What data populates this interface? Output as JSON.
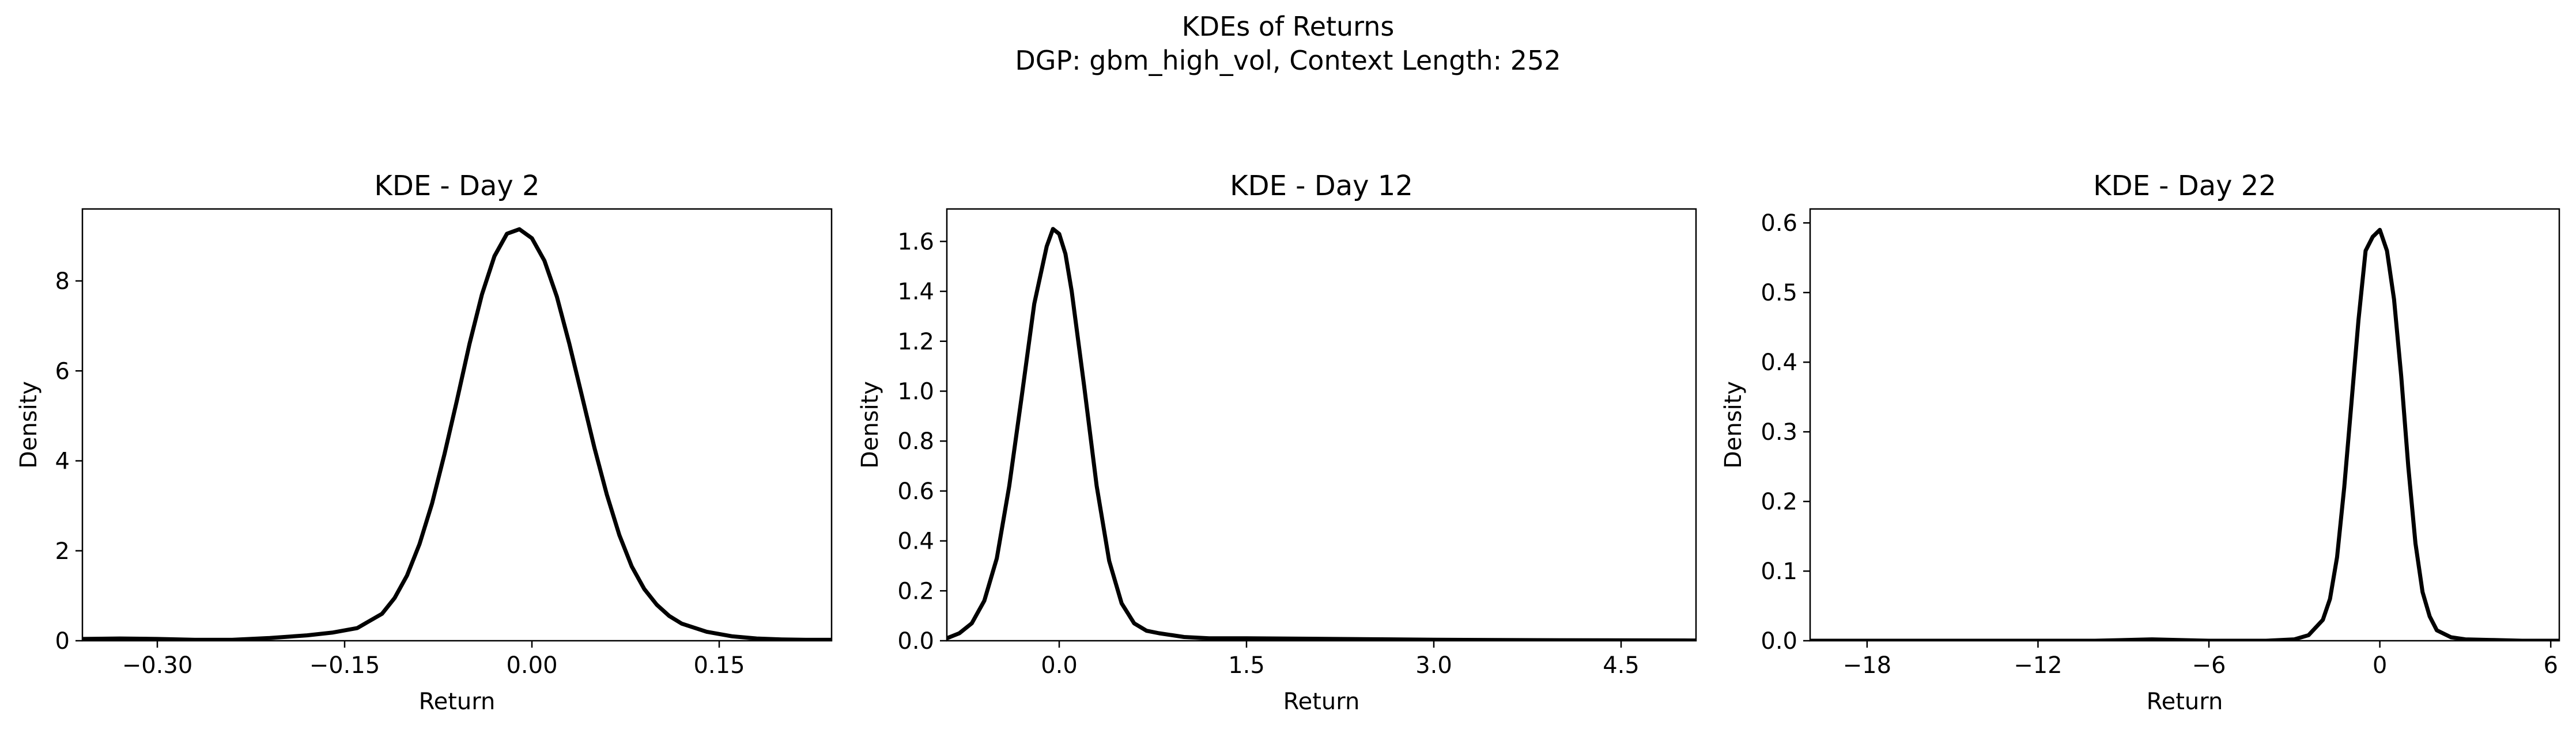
{
  "figure": {
    "title": "KDEs of Returns",
    "subtitle": "DGP: gbm_high_vol, Context Length: 252"
  },
  "chart_data": [
    {
      "type": "line",
      "title": "KDE - Day 2",
      "xlabel": "Return",
      "ylabel": "Density",
      "xlim": [
        -0.36,
        0.24
      ],
      "ylim": [
        0,
        9.6
      ],
      "xticks": [
        -0.3,
        -0.15,
        0.0,
        0.15
      ],
      "xtick_labels": [
        "−0.30",
        "−0.15",
        "0.00",
        "0.15"
      ],
      "yticks": [
        0,
        2,
        4,
        6,
        8
      ],
      "ytick_labels": [
        "0",
        "2",
        "4",
        "6",
        "8"
      ],
      "grid": false,
      "series": [
        {
          "color": "#000000",
          "x": [
            -0.36,
            -0.33,
            -0.3,
            -0.27,
            -0.24,
            -0.21,
            -0.18,
            -0.16,
            -0.14,
            -0.12,
            -0.11,
            -0.1,
            -0.09,
            -0.08,
            -0.07,
            -0.06,
            -0.05,
            -0.04,
            -0.03,
            -0.02,
            -0.01,
            0.0,
            0.01,
            0.02,
            0.03,
            0.04,
            0.05,
            0.06,
            0.07,
            0.08,
            0.09,
            0.1,
            0.11,
            0.12,
            0.14,
            0.16,
            0.18,
            0.2,
            0.22,
            0.24
          ],
          "y": [
            0.04,
            0.05,
            0.04,
            0.02,
            0.02,
            0.06,
            0.12,
            0.18,
            0.28,
            0.6,
            0.95,
            1.45,
            2.15,
            3.05,
            4.15,
            5.35,
            6.6,
            7.7,
            8.55,
            9.05,
            9.15,
            8.95,
            8.45,
            7.65,
            6.6,
            5.45,
            4.3,
            3.25,
            2.35,
            1.65,
            1.15,
            0.8,
            0.55,
            0.38,
            0.2,
            0.1,
            0.05,
            0.03,
            0.02,
            0.02
          ]
        }
      ]
    },
    {
      "type": "line",
      "title": "KDE - Day 12",
      "xlabel": "Return",
      "ylabel": "Density",
      "xlim": [
        -0.9,
        5.1
      ],
      "ylim": [
        0,
        1.73
      ],
      "xticks": [
        0.0,
        1.5,
        3.0,
        4.5
      ],
      "xtick_labels": [
        "0.0",
        "1.5",
        "3.0",
        "4.5"
      ],
      "yticks": [
        0.0,
        0.2,
        0.4,
        0.6,
        0.8,
        1.0,
        1.2,
        1.4,
        1.6
      ],
      "ytick_labels": [
        "0.0",
        "0.2",
        "0.4",
        "0.6",
        "0.8",
        "1.0",
        "1.2",
        "1.4",
        "1.6"
      ],
      "grid": false,
      "series": [
        {
          "color": "#000000",
          "x": [
            -0.9,
            -0.8,
            -0.7,
            -0.6,
            -0.5,
            -0.4,
            -0.3,
            -0.2,
            -0.1,
            -0.05,
            0.0,
            0.05,
            0.1,
            0.2,
            0.3,
            0.4,
            0.5,
            0.6,
            0.7,
            0.8,
            1.0,
            1.2,
            1.5,
            2.0,
            2.5,
            3.0,
            4.0,
            5.1
          ],
          "y": [
            0.01,
            0.03,
            0.07,
            0.16,
            0.33,
            0.62,
            0.98,
            1.35,
            1.58,
            1.65,
            1.63,
            1.55,
            1.4,
            1.02,
            0.62,
            0.32,
            0.15,
            0.07,
            0.04,
            0.03,
            0.015,
            0.01,
            0.01,
            0.008,
            0.006,
            0.004,
            0.002,
            0.001
          ]
        }
      ]
    },
    {
      "type": "line",
      "title": "KDE - Day 22",
      "xlabel": "Return",
      "ylabel": "Density",
      "xlim": [
        -20.0,
        6.3
      ],
      "ylim": [
        0,
        0.62
      ],
      "xticks": [
        -18,
        -12,
        -6,
        0,
        6
      ],
      "xtick_labels": [
        "−18",
        "−12",
        "−6",
        "0",
        "6"
      ],
      "yticks": [
        0.0,
        0.1,
        0.2,
        0.3,
        0.4,
        0.5,
        0.6
      ],
      "ytick_labels": [
        "0.0",
        "0.1",
        "0.2",
        "0.3",
        "0.4",
        "0.5",
        "0.6"
      ],
      "grid": false,
      "series": [
        {
          "color": "#000000",
          "x": [
            -20.0,
            -15.0,
            -10.0,
            -8.0,
            -6.0,
            -4.0,
            -3.0,
            -2.5,
            -2.0,
            -1.75,
            -1.5,
            -1.25,
            -1.0,
            -0.75,
            -0.5,
            -0.25,
            0.0,
            0.25,
            0.5,
            0.75,
            1.0,
            1.25,
            1.5,
            1.75,
            2.0,
            2.5,
            3.0,
            4.0,
            5.0,
            6.3
          ],
          "y": [
            0.0,
            0.0,
            0.0,
            0.002,
            0.0,
            0.0,
            0.002,
            0.008,
            0.03,
            0.06,
            0.12,
            0.22,
            0.34,
            0.46,
            0.56,
            0.58,
            0.59,
            0.56,
            0.49,
            0.38,
            0.25,
            0.14,
            0.07,
            0.035,
            0.015,
            0.005,
            0.002,
            0.001,
            0.0,
            0.0
          ]
        }
      ]
    }
  ]
}
